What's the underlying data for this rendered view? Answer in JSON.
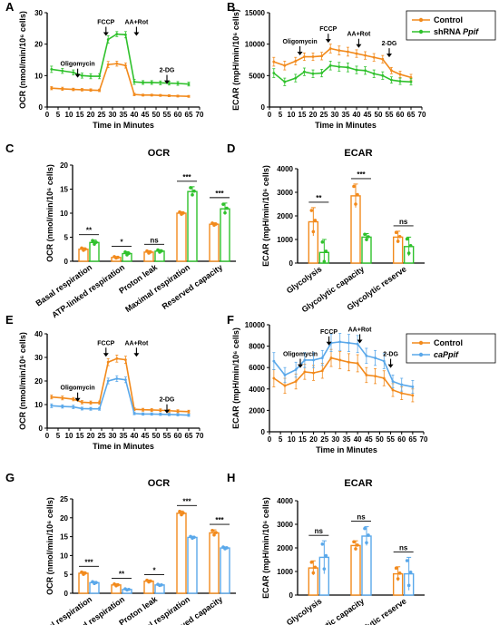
{
  "colors": {
    "control": "#f28a1c",
    "shrna": "#2fc12c",
    "caPpif": "#5aa8ea",
    "axis": "#000000"
  },
  "legends": {
    "top": [
      {
        "label": "Control",
        "series_key": "control"
      },
      {
        "label": "shRNA ",
        "italic": "Ppif",
        "series_key": "shrna"
      }
    ],
    "bottom": [
      {
        "label": "Control",
        "series_key": "control"
      },
      {
        "label": "",
        "italic": "caPpif",
        "series_key": "caPpif"
      }
    ]
  },
  "chart_data": [
    {
      "id": "A",
      "panel_label": "A",
      "type": "line",
      "title": "",
      "xlabel": "Time in Minutes",
      "ylabel": "OCR (nmol/min/10⁶ cells)",
      "xlim": [
        0,
        70
      ],
      "ylim": [
        0,
        30
      ],
      "xticks": [
        0,
        5,
        10,
        15,
        20,
        25,
        30,
        35,
        40,
        45,
        50,
        55,
        60,
        65,
        70
      ],
      "yticks": [
        0,
        10,
        20,
        30
      ],
      "injections": [
        {
          "label": "Oligomycin",
          "x": 14,
          "y": 12.5
        },
        {
          "label": "FCCP",
          "x": 27,
          "y": 25.8
        },
        {
          "label": "AA+Rot",
          "x": 41,
          "y": 25.8
        },
        {
          "label": "2-DG",
          "x": 55,
          "y": 10.5
        }
      ],
      "series": [
        {
          "name": "Control",
          "color_key": "control",
          "x": [
            2,
            7,
            12,
            16,
            20,
            24,
            28,
            32,
            36,
            40,
            44,
            48,
            52,
            56,
            60,
            65
          ],
          "y": [
            6.0,
            5.8,
            5.6,
            5.5,
            5.4,
            5.3,
            13.5,
            13.8,
            13.2,
            4.0,
            3.8,
            3.8,
            3.7,
            3.6,
            3.5,
            3.4
          ],
          "err": [
            0.5,
            0.5,
            0.4,
            0.4,
            0.4,
            0.4,
            1.0,
            0.8,
            0.8,
            0.4,
            0.3,
            0.3,
            0.3,
            0.3,
            0.3,
            0.3
          ]
        },
        {
          "name": "shRNA Ppif",
          "color_key": "shrna",
          "x": [
            2,
            7,
            12,
            16,
            20,
            24,
            28,
            32,
            36,
            40,
            44,
            48,
            52,
            56,
            60,
            65
          ],
          "y": [
            12.0,
            11.5,
            11.0,
            10.0,
            9.8,
            9.8,
            21.5,
            23.2,
            23.0,
            8.0,
            7.8,
            7.8,
            7.7,
            7.6,
            7.5,
            7.3
          ],
          "err": [
            1.0,
            0.8,
            0.8,
            0.8,
            0.8,
            0.8,
            1.2,
            0.8,
            1.0,
            0.8,
            0.6,
            0.6,
            0.6,
            0.6,
            0.6,
            0.6
          ]
        }
      ]
    },
    {
      "id": "B",
      "panel_label": "B",
      "type": "line",
      "title": "",
      "xlabel": "Time in Minutes",
      "ylabel": "ECAR (mpH/min/10⁶ cells)",
      "xlim": [
        0,
        70
      ],
      "ylim": [
        0,
        15000
      ],
      "xticks": [
        0,
        5,
        10,
        15,
        20,
        25,
        30,
        35,
        40,
        45,
        50,
        55,
        60,
        65,
        70
      ],
      "yticks": [
        0,
        5000,
        10000,
        15000
      ],
      "injections": [
        {
          "label": "Oligomycin",
          "x": 14,
          "y": 9800
        },
        {
          "label": "FCCP",
          "x": 27,
          "y": 11800
        },
        {
          "label": "AA+Rot",
          "x": 41,
          "y": 11000
        },
        {
          "label": "2-DG",
          "x": 55,
          "y": 9500
        }
      ],
      "series": [
        {
          "name": "Control",
          "color_key": "control",
          "x": [
            2,
            7,
            12,
            16,
            20,
            24,
            28,
            32,
            36,
            40,
            44,
            48,
            52,
            56,
            60,
            65
          ],
          "y": [
            7200,
            6600,
            7300,
            8000,
            8000,
            8100,
            9300,
            9000,
            8800,
            8500,
            8200,
            7900,
            7600,
            5800,
            5200,
            4700
          ],
          "err": [
            700,
            700,
            600,
            600,
            600,
            600,
            700,
            700,
            700,
            600,
            600,
            600,
            600,
            500,
            500,
            500
          ]
        },
        {
          "name": "shRNA Ppif",
          "color_key": "shrna",
          "x": [
            2,
            7,
            12,
            16,
            20,
            24,
            28,
            32,
            36,
            40,
            44,
            48,
            52,
            56,
            60,
            65
          ],
          "y": [
            5400,
            4000,
            4600,
            5600,
            5300,
            5400,
            6600,
            6400,
            6300,
            5900,
            5800,
            5300,
            5000,
            4300,
            4100,
            4000
          ],
          "err": [
            700,
            600,
            600,
            600,
            600,
            600,
            700,
            700,
            700,
            600,
            600,
            600,
            600,
            500,
            500,
            500
          ]
        }
      ]
    },
    {
      "id": "C",
      "panel_label": "C",
      "type": "bar",
      "title": "OCR",
      "ylabel": "OCR (nmol/min/10⁶ cells)",
      "ylim": [
        0,
        20
      ],
      "yticks": [
        0,
        5,
        10,
        15,
        20
      ],
      "categories": [
        "Basal respiration",
        "ATP-linked respiration",
        "Proton leak",
        "Maximal respiration",
        "Reserved capacity"
      ],
      "significance": [
        "**",
        "*",
        "ns",
        "***",
        "***"
      ],
      "series": [
        {
          "name": "Control",
          "color_key": "control",
          "values": [
            2.5,
            0.8,
            1.9,
            10.0,
            7.7
          ],
          "err": [
            0.3,
            0.2,
            0.3,
            0.3,
            0.3
          ]
        },
        {
          "name": "shRNA Ppif",
          "color_key": "shrna",
          "values": [
            3.9,
            1.6,
            2.1,
            14.5,
            10.9
          ],
          "err": [
            0.5,
            0.4,
            0.3,
            1.0,
            1.2
          ]
        }
      ]
    },
    {
      "id": "D",
      "panel_label": "D",
      "type": "bar",
      "title": "ECAR",
      "ylabel": "ECAR (mpH/min/10⁶ cells)",
      "ylim": [
        0,
        4000
      ],
      "yticks": [
        0,
        1000,
        2000,
        3000,
        4000
      ],
      "categories": [
        "Glycolysis",
        "Glycolytic capacity",
        "Glycolytic reserve"
      ],
      "significance": [
        "**",
        "***",
        "ns"
      ],
      "series": [
        {
          "name": "Control",
          "color_key": "control",
          "values": [
            1750,
            2850,
            1100
          ],
          "err": [
            600,
            500,
            250
          ]
        },
        {
          "name": "shRNA Ppif",
          "color_key": "shrna",
          "values": [
            450,
            1100,
            700
          ],
          "err": [
            550,
            150,
            400
          ]
        }
      ]
    },
    {
      "id": "E",
      "panel_label": "E",
      "type": "line",
      "title": "",
      "xlabel": "Time in Minutes",
      "ylabel": "OCR (nmol/min/10⁶ cells)",
      "xlim": [
        0,
        70
      ],
      "ylim": [
        0,
        40
      ],
      "xticks": [
        0,
        5,
        10,
        15,
        20,
        25,
        30,
        35,
        40,
        45,
        50,
        55,
        60,
        65,
        70
      ],
      "yticks": [
        0,
        10,
        20,
        30,
        40
      ],
      "injections": [
        {
          "label": "Oligomycin",
          "x": 14,
          "y": 15.5
        },
        {
          "label": "FCCP",
          "x": 27,
          "y": 34.5
        },
        {
          "label": "AA+Rot",
          "x": 41,
          "y": 34.5
        },
        {
          "label": "2-DG",
          "x": 55,
          "y": 10.5
        }
      ],
      "series": [
        {
          "name": "Control",
          "color_key": "control",
          "x": [
            2,
            7,
            12,
            16,
            20,
            24,
            28,
            32,
            36,
            40,
            44,
            48,
            52,
            56,
            60,
            65
          ],
          "y": [
            13.2,
            12.8,
            12.3,
            11.0,
            10.8,
            10.8,
            28.0,
            29.5,
            29.0,
            8.0,
            7.8,
            7.7,
            7.6,
            7.4,
            7.2,
            7.0
          ],
          "err": [
            0.8,
            0.8,
            0.7,
            0.7,
            0.7,
            0.7,
            1.5,
            1.5,
            1.5,
            0.6,
            0.6,
            0.6,
            0.6,
            0.6,
            0.6,
            0.6
          ]
        },
        {
          "name": "caPpif",
          "color_key": "caPpif",
          "x": [
            2,
            7,
            12,
            16,
            20,
            24,
            28,
            32,
            36,
            40,
            44,
            48,
            52,
            56,
            60,
            65
          ],
          "y": [
            9.5,
            9.2,
            9.0,
            8.3,
            8.2,
            8.2,
            20.0,
            21.0,
            20.5,
            6.2,
            6.0,
            6.0,
            5.9,
            5.8,
            5.7,
            5.5
          ],
          "err": [
            0.8,
            0.7,
            0.7,
            0.6,
            0.6,
            0.6,
            1.2,
            1.2,
            1.2,
            0.5,
            0.5,
            0.5,
            0.5,
            0.5,
            0.5,
            0.5
          ]
        }
      ]
    },
    {
      "id": "F",
      "panel_label": "F",
      "type": "line",
      "title": "",
      "xlabel": "Time in Minutes",
      "ylabel": "ECAR (mpH/min/10⁶ cells)",
      "xlim": [
        0,
        70
      ],
      "ylim": [
        0,
        10000
      ],
      "xticks": [
        0,
        5,
        10,
        15,
        20,
        25,
        30,
        35,
        40,
        45,
        50,
        55,
        60,
        65,
        70
      ],
      "yticks": [
        0,
        2000,
        4000,
        6000,
        8000,
        10000
      ],
      "injections": [
        {
          "label": "Oligomycin",
          "x": 14,
          "y": 6900
        },
        {
          "label": "FCCP",
          "x": 27,
          "y": 9000
        },
        {
          "label": "AA+Rot",
          "x": 41,
          "y": 9200
        },
        {
          "label": "2-DG",
          "x": 55,
          "y": 6900
        }
      ],
      "series": [
        {
          "name": "Control",
          "color_key": "control",
          "x": [
            2,
            7,
            12,
            16,
            20,
            24,
            28,
            32,
            36,
            40,
            44,
            48,
            52,
            56,
            60,
            65
          ],
          "y": [
            5000,
            4300,
            4700,
            5600,
            5500,
            5700,
            6900,
            6700,
            6500,
            6400,
            5300,
            5200,
            5000,
            3900,
            3600,
            3400
          ],
          "err": [
            800,
            700,
            700,
            700,
            700,
            700,
            800,
            800,
            800,
            800,
            700,
            700,
            700,
            600,
            600,
            600
          ]
        },
        {
          "name": "caPpif",
          "color_key": "caPpif",
          "x": [
            2,
            7,
            12,
            16,
            20,
            24,
            28,
            32,
            36,
            40,
            44,
            48,
            52,
            56,
            60,
            65
          ],
          "y": [
            6600,
            5300,
            5800,
            6700,
            6700,
            6900,
            8300,
            8400,
            8300,
            8200,
            7100,
            6900,
            6600,
            4700,
            4400,
            4200
          ],
          "err": [
            800,
            700,
            700,
            700,
            700,
            700,
            800,
            800,
            800,
            800,
            700,
            700,
            700,
            600,
            600,
            600
          ]
        }
      ]
    },
    {
      "id": "G",
      "panel_label": "G",
      "type": "bar",
      "title": "OCR",
      "ylabel": "OCR (nmol/min/10⁶ cells)",
      "ylim": [
        0,
        25
      ],
      "yticks": [
        0,
        5,
        10,
        15,
        20,
        25
      ],
      "categories": [
        "Basal respiration",
        "ATP-linked respiration",
        "Proton leak",
        "Maximal respiration",
        "Reserved capacity"
      ],
      "significance": [
        "***",
        "**",
        "*",
        "***",
        "***"
      ],
      "series": [
        {
          "name": "Control",
          "color_key": "control",
          "values": [
            5.3,
            2.2,
            3.2,
            21.2,
            16.0
          ],
          "err": [
            0.4,
            0.3,
            0.3,
            0.6,
            0.8
          ]
        },
        {
          "name": "caPpif",
          "color_key": "caPpif",
          "values": [
            2.8,
            1.0,
            2.2,
            14.8,
            12.0
          ],
          "err": [
            0.3,
            0.2,
            0.2,
            0.3,
            0.3
          ]
        }
      ]
    },
    {
      "id": "H",
      "panel_label": "H",
      "type": "bar",
      "title": "ECAR",
      "ylabel": "ECAR (mpH/min/10⁶ cells)",
      "ylim": [
        0,
        4000
      ],
      "yticks": [
        0,
        1000,
        2000,
        3000,
        4000
      ],
      "categories": [
        "Glycolysis",
        "Glycolytic capacity",
        "Glycolytic reserve"
      ],
      "significance": [
        "ns",
        "ns",
        "ns"
      ],
      "series": [
        {
          "name": "Control",
          "color_key": "control",
          "values": [
            1150,
            2100,
            900
          ],
          "err": [
            300,
            200,
            300
          ]
        },
        {
          "name": "caPpif",
          "color_key": "caPpif",
          "values": [
            1600,
            2500,
            900
          ],
          "err": [
            700,
            400,
            700
          ]
        }
      ]
    }
  ]
}
